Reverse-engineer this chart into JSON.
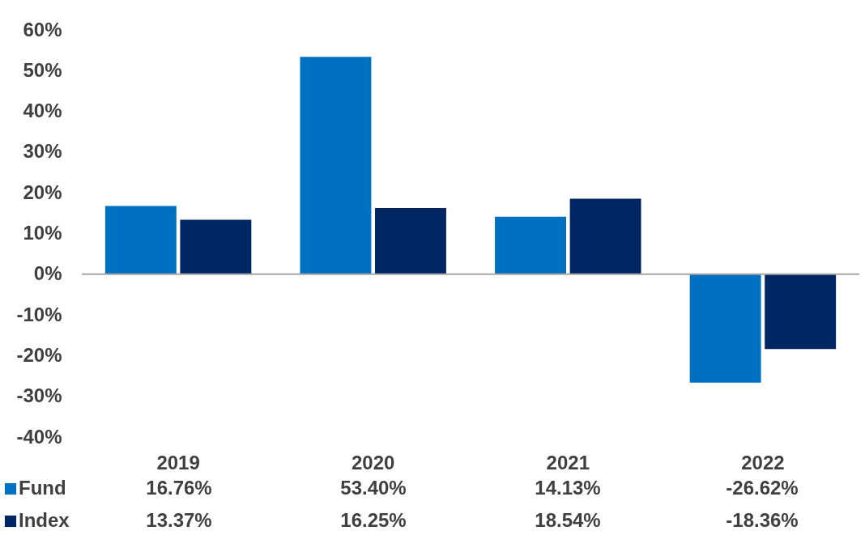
{
  "chart_data": {
    "type": "bar",
    "categories": [
      "2019",
      "2020",
      "2021",
      "2022"
    ],
    "series": [
      {
        "name": "Fund",
        "color": "#0070c0",
        "values": [
          16.76,
          53.4,
          14.13,
          -26.62
        ],
        "value_labels": [
          "16.76%",
          "53.40%",
          "14.13%",
          "-26.62%"
        ]
      },
      {
        "name": "Index",
        "color": "#002663",
        "values": [
          13.37,
          16.25,
          18.54,
          -18.36
        ],
        "value_labels": [
          "13.37%",
          "16.25%",
          "18.54%",
          "-18.36%"
        ]
      }
    ],
    "ylim": [
      -40,
      60
    ],
    "yticks": [
      {
        "value": -40,
        "label": "-40%"
      },
      {
        "value": -30,
        "label": "-30%"
      },
      {
        "value": -20,
        "label": "-20%"
      },
      {
        "value": -10,
        "label": "-10%"
      },
      {
        "value": 0,
        "label": "0%"
      },
      {
        "value": 10,
        "label": "10%"
      },
      {
        "value": 20,
        "label": "20%"
      },
      {
        "value": 30,
        "label": "30%"
      },
      {
        "value": 40,
        "label": "40%"
      },
      {
        "value": 50,
        "label": "50%"
      },
      {
        "value": 60,
        "label": "60%"
      }
    ],
    "legend": "bottom left"
  }
}
